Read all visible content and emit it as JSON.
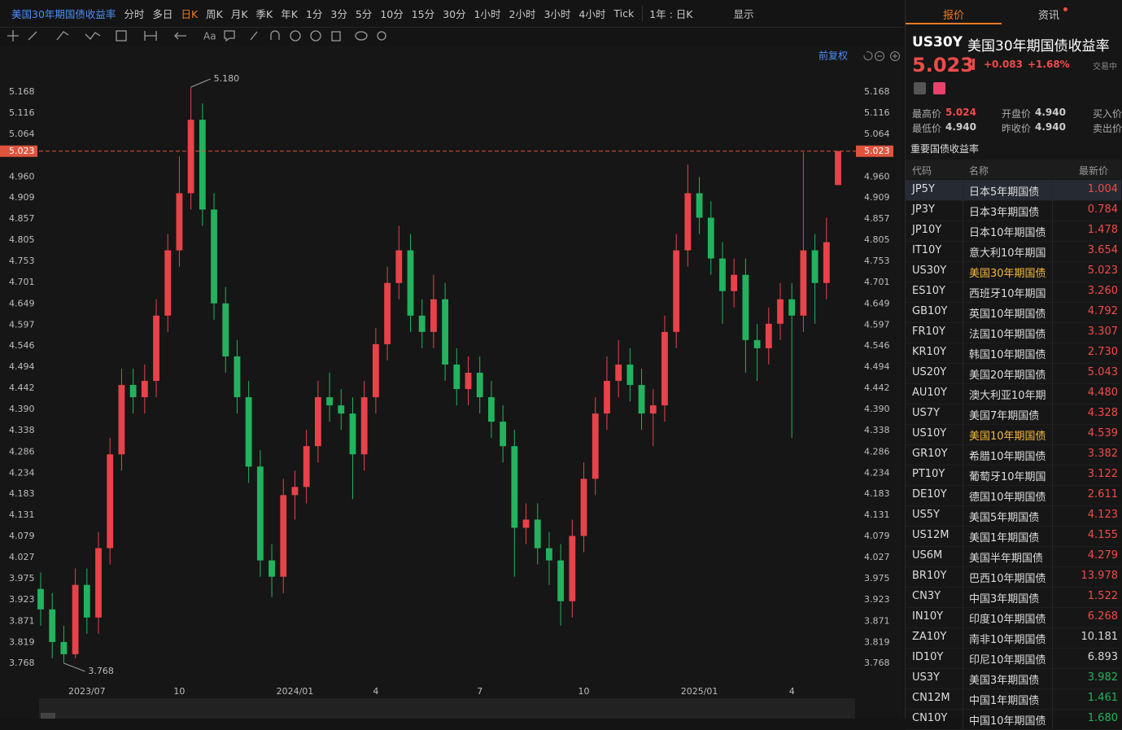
{
  "toolbar": {
    "symbol": "美国30年期国债收益率",
    "periods": [
      "分时",
      "多日",
      "日K",
      "周K",
      "月K",
      "季K",
      "年K",
      "1分",
      "3分",
      "5分",
      "10分",
      "15分",
      "30分",
      "1小时",
      "2小时",
      "3小时",
      "4小时",
      "Tick"
    ],
    "active_period": 2,
    "range": "1年 : 日K",
    "display": "显示"
  },
  "adjust": "前复权",
  "chart_data": {
    "type": "candlestick",
    "ylim": [
      3.718,
      5.234
    ],
    "yticks": [
      5.168,
      5.116,
      5.064,
      {
        "value": 4.96,
        "label": "4.960"
      },
      4.909,
      4.857,
      4.805,
      4.753,
      4.701,
      4.649,
      4.597,
      4.546,
      4.494,
      4.442,
      {
        "value": 4.39,
        "label": "4.390"
      },
      4.338,
      4.286,
      4.234,
      4.183,
      4.131,
      4.079,
      4.027,
      3.975,
      3.923,
      3.871,
      3.819,
      3.768
    ],
    "categories": [
      null,
      null,
      null,
      null,
      "2023/07",
      null,
      null,
      null,
      null,
      null,
      null,
      null,
      "10",
      null,
      null,
      null,
      null,
      null,
      null,
      null,
      null,
      null,
      "2024/01",
      null,
      null,
      null,
      null,
      null,
      null,
      "4",
      null,
      null,
      null,
      null,
      null,
      null,
      null,
      null,
      "7",
      null,
      null,
      null,
      null,
      null,
      null,
      null,
      null,
      "10",
      null,
      null,
      null,
      null,
      null,
      null,
      null,
      null,
      null,
      "2025/01",
      null,
      null,
      null,
      null,
      null,
      null,
      null,
      "4",
      null,
      null,
      null,
      null
    ],
    "open": [
      3.95,
      3.9,
      3.82,
      3.79,
      3.96,
      3.88,
      4.05,
      4.28,
      4.45,
      4.42,
      4.46,
      4.62,
      4.78,
      4.92,
      5.1,
      4.88,
      4.65,
      4.52,
      4.42,
      4.25,
      4.02,
      3.98,
      4.18,
      4.2,
      4.3,
      4.42,
      4.4,
      4.38,
      4.28,
      4.42,
      4.55,
      4.7,
      4.78,
      4.62,
      4.58,
      4.66,
      4.5,
      4.44,
      4.48,
      4.42,
      4.36,
      4.3,
      4.1,
      4.12,
      4.05,
      4.02,
      3.92,
      4.08,
      4.22,
      4.38,
      4.46,
      4.5,
      4.45,
      4.38,
      4.4,
      4.58,
      4.78,
      4.92,
      4.86,
      4.76,
      4.68,
      4.72,
      4.56,
      4.54,
      4.6,
      4.66,
      4.62,
      4.78,
      4.7,
      4.94
    ],
    "high": [
      3.99,
      3.94,
      3.86,
      4.0,
      4.0,
      4.09,
      4.32,
      4.49,
      4.49,
      4.5,
      4.66,
      4.82,
      5.01,
      5.18,
      5.14,
      4.92,
      4.69,
      4.56,
      4.46,
      4.29,
      4.06,
      4.22,
      4.24,
      4.34,
      4.46,
      4.48,
      4.44,
      4.42,
      4.46,
      4.59,
      4.74,
      4.84,
      4.82,
      4.66,
      4.72,
      4.7,
      4.54,
      4.52,
      4.52,
      4.46,
      4.4,
      4.34,
      4.16,
      4.16,
      4.09,
      4.06,
      4.12,
      4.26,
      4.42,
      4.52,
      4.56,
      4.54,
      4.49,
      4.44,
      4.62,
      4.82,
      4.99,
      4.96,
      4.9,
      4.8,
      4.76,
      4.76,
      4.6,
      4.64,
      4.7,
      4.7,
      5.02,
      4.82,
      4.86,
      5.024
    ],
    "low": [
      3.86,
      3.78,
      3.768,
      3.78,
      3.84,
      3.84,
      4.01,
      4.24,
      4.38,
      4.38,
      4.42,
      4.58,
      4.74,
      4.88,
      4.84,
      4.61,
      4.48,
      4.38,
      4.21,
      3.98,
      3.93,
      3.94,
      4.12,
      4.16,
      4.26,
      4.36,
      4.34,
      4.17,
      4.24,
      4.38,
      4.51,
      4.66,
      4.58,
      4.54,
      4.54,
      4.46,
      4.4,
      4.4,
      4.38,
      4.32,
      4.26,
      3.98,
      4.06,
      4.01,
      3.96,
      3.86,
      3.88,
      4.04,
      4.18,
      4.34,
      4.42,
      4.41,
      4.34,
      4.3,
      4.36,
      4.54,
      4.74,
      4.82,
      4.72,
      4.6,
      4.64,
      4.48,
      4.46,
      4.5,
      4.56,
      4.32,
      4.58,
      4.6,
      4.66,
      4.94
    ],
    "close": [
      3.9,
      3.82,
      3.79,
      3.96,
      3.88,
      4.05,
      4.28,
      4.45,
      4.42,
      4.46,
      4.62,
      4.78,
      4.92,
      5.1,
      4.88,
      4.65,
      4.52,
      4.42,
      4.25,
      4.02,
      3.98,
      4.18,
      4.2,
      4.3,
      4.42,
      4.4,
      4.38,
      4.28,
      4.42,
      4.55,
      4.7,
      4.78,
      4.62,
      4.58,
      4.66,
      4.5,
      4.44,
      4.48,
      4.42,
      4.36,
      4.3,
      4.1,
      4.12,
      4.05,
      4.02,
      3.92,
      4.08,
      4.22,
      4.38,
      4.46,
      4.5,
      4.45,
      4.38,
      4.4,
      4.58,
      4.78,
      4.92,
      4.86,
      4.76,
      4.68,
      4.72,
      4.56,
      4.54,
      4.6,
      4.66,
      4.62,
      4.78,
      4.7,
      4.8,
      5.023
    ],
    "up_color": "#e8424a",
    "down_color": "#22b35e",
    "price_line_color": "#e0533d",
    "annotations": {
      "max": "5.180",
      "min": "3.768"
    },
    "grid": false
  },
  "tabs": [
    "报价",
    "资讯"
  ],
  "quote": {
    "code": "US30Y",
    "name": "美国30年期国债收益率",
    "price": "5.023",
    "change": "+0.083",
    "change_pct": "+1.68%",
    "status": "交易中",
    "stats": [
      [
        "最高价",
        "5.024"
      ],
      [
        "开盘价",
        "4.940"
      ],
      [
        "买入价"
      ],
      [
        "最低价",
        "4.940"
      ],
      [
        "昨收价",
        "4.940"
      ],
      [
        "卖出价"
      ]
    ]
  },
  "table": {
    "title": "重要国债收益率",
    "headers": [
      "代码",
      "名称",
      "最新价"
    ],
    "rows": [
      [
        "JP5Y",
        "日本5年期国债",
        "1.004"
      ],
      [
        "JP3Y",
        "日本3年期国债",
        "0.784"
      ],
      [
        "JP10Y",
        "日本10年期国债",
        "1.478"
      ],
      [
        "IT10Y",
        "意大利10年期国",
        "3.654"
      ],
      [
        "US30Y",
        "美国30年期国债",
        "5.023"
      ],
      [
        "ES10Y",
        "西班牙10年期国",
        "3.260"
      ],
      [
        "GB10Y",
        "英国10年期国债",
        "4.792"
      ],
      [
        "FR10Y",
        "法国10年期国债",
        "3.307"
      ],
      [
        "KR10Y",
        "韩国10年期国债",
        "2.730"
      ],
      [
        "US20Y",
        "美国20年期国债",
        "5.043"
      ],
      [
        "AU10Y",
        "澳大利亚10年期",
        "4.480"
      ],
      [
        "US7Y",
        "美国7年期国债",
        "4.328"
      ],
      [
        "US10Y",
        "美国10年期国债",
        "4.539"
      ],
      [
        "GR10Y",
        "希腊10年期国债",
        "3.382"
      ],
      [
        "PT10Y",
        "葡萄牙10年期国",
        "3.122"
      ],
      [
        "DE10Y",
        "德国10年期国债",
        "2.611"
      ],
      [
        "US5Y",
        "美国5年期国债",
        "4.123"
      ],
      [
        "US12M",
        "美国1年期国债",
        "4.155"
      ],
      [
        "US6M",
        "美国半年期国债",
        "4.279"
      ],
      [
        "BR10Y",
        "巴西10年期国债",
        "13.978"
      ],
      [
        "CN3Y",
        "中国3年期国债",
        "1.522"
      ],
      [
        "IN10Y",
        "印度10年期国债",
        "6.268"
      ],
      [
        "ZA10Y",
        "南非10年期国债",
        "10.181"
      ],
      [
        "ID10Y",
        "印尼10年期国债",
        "6.893"
      ],
      [
        "US3Y",
        "美国3年期国债",
        "3.982"
      ],
      [
        "CN12M",
        "中国1年期国债",
        "1.461"
      ],
      [
        "CN10Y",
        "中国10年期国债",
        "1.680"
      ]
    ],
    "value_colors": [
      "#f04b4b",
      "#f04b4b",
      "#f04b4b",
      "#f04b4b",
      "#f04b4b",
      "#f04b4b",
      "#f04b4b",
      "#f04b4b",
      "#f04b4b",
      "#f04b4b",
      "#f04b4b",
      "#f04b4b",
      "#f04b4b",
      "#f04b4b",
      "#f04b4b",
      "#f04b4b",
      "#f04b4b",
      "#f04b4b",
      "#f04b4b",
      "#f04b4b",
      "#f04b4b",
      "#f04b4b",
      "#d8d8d8",
      "#d8d8d8",
      "#22b35e",
      "#22b35e",
      "#22b35e"
    ],
    "highlight_names": [
      4,
      12
    ],
    "selected_row": 0
  }
}
